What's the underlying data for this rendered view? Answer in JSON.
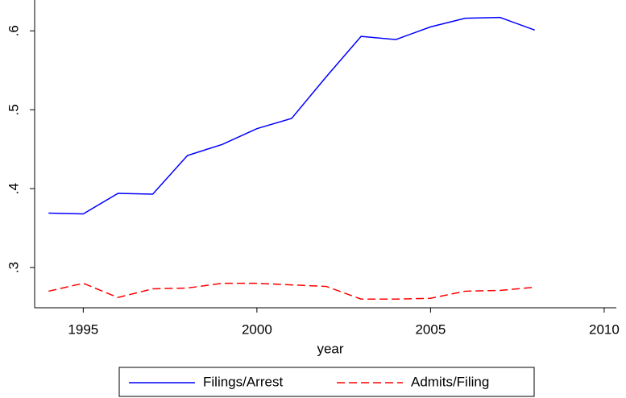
{
  "chart_data": {
    "type": "line",
    "x": [
      1994,
      1995,
      1996,
      1997,
      1998,
      1999,
      2000,
      2001,
      2002,
      2003,
      2004,
      2005,
      2006,
      2007,
      2008
    ],
    "series": [
      {
        "name": "Filings/Arrest",
        "color": "#0000ff",
        "dash": "solid",
        "values": [
          0.369,
          0.368,
          0.394,
          0.393,
          0.442,
          0.456,
          0.476,
          0.489,
          0.542,
          0.593,
          0.589,
          0.605,
          0.616,
          0.617,
          0.601
        ]
      },
      {
        "name": "Admits/Filing",
        "color": "#ff0000",
        "dash": "dashed",
        "values": [
          0.27,
          0.28,
          0.262,
          0.273,
          0.274,
          0.28,
          0.28,
          0.278,
          0.276,
          0.26,
          0.26,
          0.261,
          0.27,
          0.271,
          0.275
        ]
      }
    ],
    "xlabel": "year",
    "xlim": [
      1993.6,
      2010.35
    ],
    "xticks": [
      1995,
      2000,
      2005,
      2010
    ],
    "ylim": [
      0.249,
      0.634
    ],
    "yticks": [
      {
        "value": 0.3,
        "label": ".3"
      },
      {
        "value": 0.4,
        "label": ".4"
      },
      {
        "value": 0.5,
        "label": ".5"
      },
      {
        "value": 0.6,
        "label": ".6"
      }
    ]
  }
}
